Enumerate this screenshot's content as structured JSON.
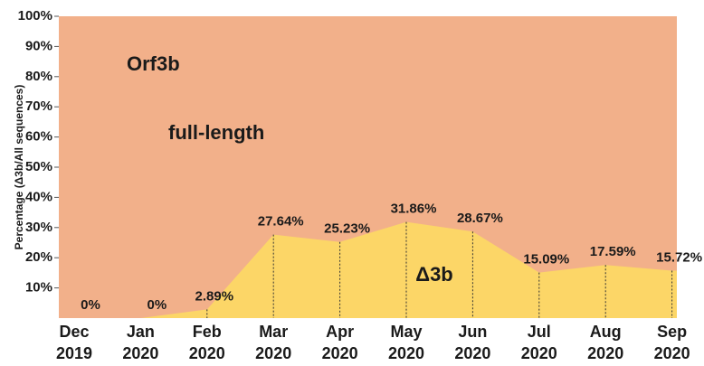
{
  "chart_data": {
    "type": "area",
    "y_axis_label": "Percentage (Δ3b/All sequences)",
    "annotations": [
      "Orf3b",
      "full-length"
    ],
    "background_color": "#f2b08a",
    "categories": [
      "Dec 2019",
      "Jan 2020",
      "Feb 2020",
      "Mar 2020",
      "Apr 2020",
      "May 2020",
      "Jun 2020",
      "Jul 2020",
      "Aug 2020",
      "Sep 2020"
    ],
    "series": [
      {
        "name": "Δ3b",
        "color": "#fcd667",
        "values": [
          0,
          0,
          2.89,
          27.64,
          25.23,
          31.86,
          28.67,
          15.09,
          17.59,
          15.72
        ],
        "value_labels": [
          "0%",
          "0%",
          "2.89%",
          "27.64%",
          "25.23%",
          "31.86%",
          "28.67%",
          "15.09%",
          "17.59%",
          "15.72%"
        ]
      }
    ],
    "ylim": [
      0,
      100
    ],
    "yticks": [
      {
        "value": 10,
        "label": "10%"
      },
      {
        "value": 20,
        "label": "20%"
      },
      {
        "value": 30,
        "label": "30%"
      },
      {
        "value": 40,
        "label": "40%"
      },
      {
        "value": 50,
        "label": "50%"
      },
      {
        "value": 60,
        "label": "60%"
      },
      {
        "value": 70,
        "label": "70%"
      },
      {
        "value": 80,
        "label": "80%"
      },
      {
        "value": 90,
        "label": "90%"
      },
      {
        "value": 100,
        "label": "100%"
      }
    ]
  }
}
